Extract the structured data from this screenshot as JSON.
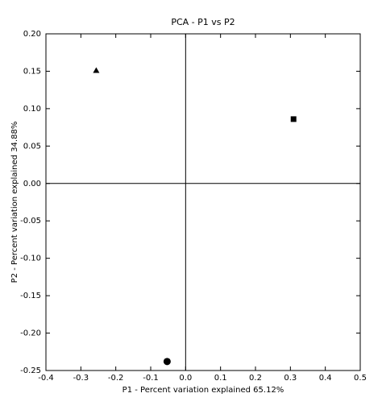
{
  "chart_data": {
    "type": "scatter",
    "title": "PCA - P1 vs P2",
    "x_label": "P1 - Percent variation explained 65.12%",
    "y_label": "P2 - Percent variation explained 34.88%",
    "points": [
      {
        "x": -0.256,
        "y": 0.151,
        "marker": "triangle"
      },
      {
        "x": 0.309,
        "y": 0.086,
        "marker": "square"
      },
      {
        "x": -0.053,
        "y": -0.238,
        "marker": "circle"
      }
    ],
    "color": "#000000",
    "xlim": [
      -0.4,
      0.5
    ],
    "xticks": [
      -0.4,
      -0.3,
      -0.2,
      -0.1,
      {
        "value": 0,
        "label": "0.0"
      },
      0.1,
      0.2,
      0.3,
      0.4,
      0.5
    ],
    "ylim": [
      -0.25,
      0.2
    ],
    "yticks": [
      -0.25,
      {
        "value": -0.2,
        "label": "-0.20"
      },
      -0.15,
      {
        "value": -0.1,
        "label": "-0.10"
      },
      -0.05,
      {
        "value": 0,
        "label": "0.00"
      },
      0.05,
      {
        "value": 0.1,
        "label": "0.10"
      },
      0.15,
      {
        "value": 0.2,
        "label": "0.20"
      }
    ],
    "zero_lines": true
  }
}
